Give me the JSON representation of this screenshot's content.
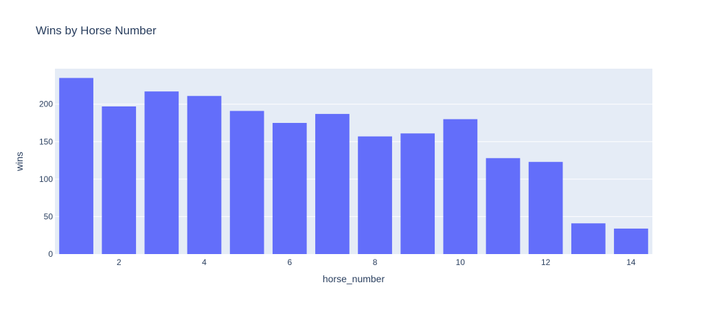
{
  "chart_data": {
    "type": "bar",
    "title": "Wins by Horse Number",
    "xlabel": "horse_number",
    "ylabel": "wins",
    "x": [
      1,
      2,
      3,
      4,
      5,
      6,
      7,
      8,
      9,
      10,
      11,
      12,
      13,
      14
    ],
    "values": [
      235,
      197,
      217,
      211,
      191,
      175,
      187,
      157,
      161,
      180,
      128,
      123,
      41,
      34
    ],
    "xticks": [
      2,
      4,
      6,
      8,
      10,
      12,
      14
    ],
    "yticks": [
      0,
      50,
      100,
      150,
      200
    ],
    "xlim": [
      0.5,
      14.5
    ],
    "ylim": [
      0,
      247.4
    ],
    "grid": true,
    "bar_color": "#636efa",
    "plot_bg": "#e5ecf6",
    "text_color": "#2a3f5f"
  }
}
